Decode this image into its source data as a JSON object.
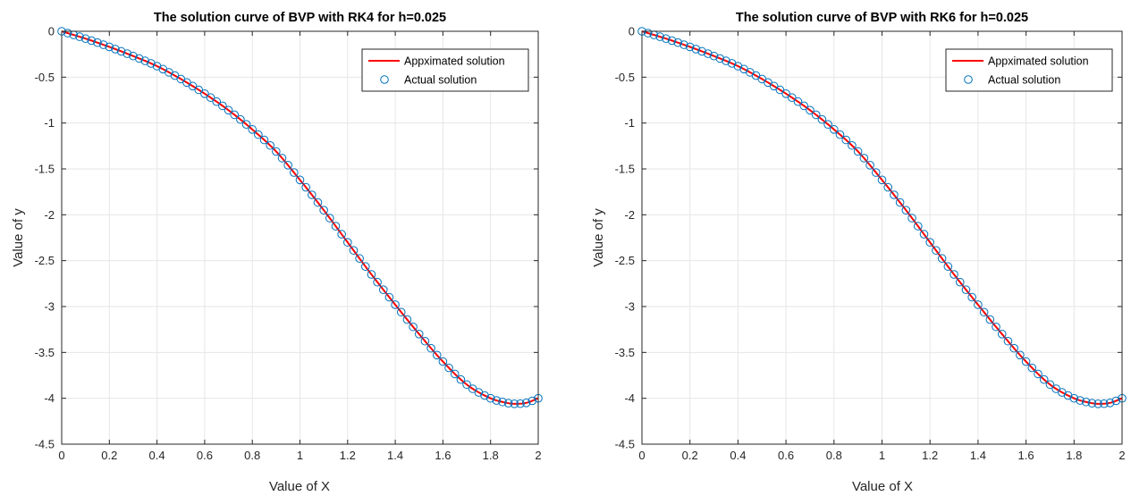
{
  "chart_data": [
    {
      "type": "line",
      "title": "The solution curve of BVP with RK4 for h=0.025",
      "xlabel": "Value of X",
      "ylabel": "Value of y",
      "xlim": [
        0,
        2
      ],
      "ylim": [
        -4.5,
        0
      ],
      "xticks": [
        "0",
        "0.2",
        "0.4",
        "0.6",
        "0.8",
        "1",
        "1.2",
        "1.4",
        "1.6",
        "1.8",
        "2"
      ],
      "yticks": [
        "0",
        "-0.5",
        "-1",
        "-1.5",
        "-2",
        "-2.5",
        "-3",
        "-3.5",
        "-4",
        "-4.5"
      ],
      "grid": true,
      "legend_position": "top-right",
      "x": [
        0,
        0.1,
        0.2,
        0.3,
        0.4,
        0.5,
        0.6,
        0.7,
        0.8,
        0.9,
        1.0,
        1.1,
        1.2,
        1.3,
        1.4,
        1.5,
        1.6,
        1.7,
        1.8,
        1.85,
        1.9,
        1.95,
        2.0
      ],
      "series": [
        {
          "name": "Appximated solution",
          "style": "line",
          "color": "#ff0000",
          "values": [
            0,
            -0.08,
            -0.17,
            -0.27,
            -0.38,
            -0.52,
            -0.68,
            -0.86,
            -1.07,
            -1.31,
            -1.62,
            -1.95,
            -2.3,
            -2.65,
            -2.98,
            -3.3,
            -3.6,
            -3.85,
            -4.0,
            -4.04,
            -4.06,
            -4.05,
            -4.0
          ]
        },
        {
          "name": "Actual solution",
          "style": "markers",
          "marker": "circle",
          "color": "#0072bd",
          "values": [
            0,
            -0.08,
            -0.17,
            -0.27,
            -0.38,
            -0.52,
            -0.68,
            -0.86,
            -1.07,
            -1.31,
            -1.62,
            -1.95,
            -2.3,
            -2.65,
            -2.98,
            -3.3,
            -3.6,
            -3.85,
            -4.0,
            -4.04,
            -4.06,
            -4.05,
            -4.0
          ]
        }
      ]
    },
    {
      "type": "line",
      "title": "The solution curve of BVP with RK6 for h=0.025",
      "xlabel": "Value of X",
      "ylabel": "Value of y",
      "xlim": [
        0,
        2
      ],
      "ylim": [
        -4.5,
        0
      ],
      "xticks": [
        "0",
        "0.2",
        "0.4",
        "0.6",
        "0.8",
        "1",
        "1.2",
        "1.4",
        "1.6",
        "1.8",
        "2"
      ],
      "yticks": [
        "0",
        "-0.5",
        "-1",
        "-1.5",
        "-2",
        "-2.5",
        "-3",
        "-3.5",
        "-4",
        "-4.5"
      ],
      "grid": true,
      "legend_position": "top-right",
      "x": [
        0,
        0.1,
        0.2,
        0.3,
        0.4,
        0.5,
        0.6,
        0.7,
        0.8,
        0.9,
        1.0,
        1.1,
        1.2,
        1.3,
        1.4,
        1.5,
        1.6,
        1.7,
        1.8,
        1.85,
        1.9,
        1.95,
        2.0
      ],
      "series": [
        {
          "name": "Appximated solution",
          "style": "line",
          "color": "#ff0000",
          "values": [
            0,
            -0.08,
            -0.17,
            -0.27,
            -0.38,
            -0.52,
            -0.68,
            -0.86,
            -1.07,
            -1.31,
            -1.62,
            -1.95,
            -2.3,
            -2.65,
            -2.98,
            -3.3,
            -3.6,
            -3.85,
            -4.0,
            -4.04,
            -4.06,
            -4.05,
            -4.0
          ]
        },
        {
          "name": "Actual solution",
          "style": "markers",
          "marker": "circle",
          "color": "#0072bd",
          "values": [
            0,
            -0.08,
            -0.17,
            -0.27,
            -0.38,
            -0.52,
            -0.68,
            -0.86,
            -1.07,
            -1.31,
            -1.62,
            -1.95,
            -2.3,
            -2.65,
            -2.98,
            -3.3,
            -3.6,
            -3.85,
            -4.0,
            -4.04,
            -4.06,
            -4.05,
            -4.0
          ]
        }
      ]
    }
  ]
}
